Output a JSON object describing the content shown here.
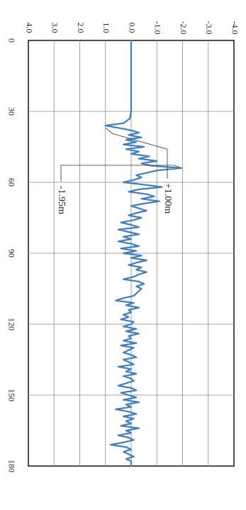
{
  "chart_data": {
    "type": "line",
    "orientation": "rotated-90-clockwise",
    "title": "",
    "xlabel": "",
    "ylabel": "",
    "x_ticks": [
      "0",
      "30",
      "60",
      "90",
      "120",
      "150",
      "180"
    ],
    "y_ticks": [
      "4.0",
      "3.0",
      "2.0",
      "1.0",
      "0.0",
      "-1.0",
      "-2.0",
      "-3.0",
      "-4.0"
    ],
    "xlim": [
      0,
      180
    ],
    "ylim": [
      -4.0,
      4.0
    ],
    "grid": true,
    "line_color": "#3d7fc4",
    "series": [
      {
        "x": [
          0,
          5,
          10,
          15,
          20,
          25,
          30,
          33,
          35,
          36,
          37,
          38,
          39,
          40,
          41,
          42,
          43,
          44,
          45,
          46,
          47,
          48,
          49,
          50,
          51,
          52,
          53,
          54,
          55,
          56,
          57,
          58,
          59,
          60,
          61,
          62,
          63,
          64,
          65,
          66,
          67,
          68,
          69,
          70,
          71,
          72,
          73,
          74,
          75,
          76,
          77,
          78,
          79,
          80,
          81,
          82,
          83,
          84,
          85,
          86,
          87,
          88,
          89,
          90,
          91,
          92,
          93,
          94,
          95,
          96,
          97,
          98,
          99,
          100,
          101,
          102,
          103,
          104,
          105,
          106,
          107,
          108,
          109,
          110,
          111,
          112,
          113,
          114,
          115,
          116,
          117,
          118,
          119,
          120,
          121,
          122,
          123,
          124,
          125,
          126,
          127,
          128,
          129,
          130,
          131,
          132,
          133,
          134,
          135,
          136,
          137,
          138,
          139,
          140,
          141,
          142,
          143,
          144,
          145,
          146,
          147,
          148,
          149,
          150,
          151,
          152,
          153,
          154,
          155,
          156,
          157,
          158,
          159,
          160,
          161,
          162,
          163,
          164,
          165,
          166,
          167,
          168,
          169,
          170,
          171,
          172,
          173,
          174,
          175,
          176,
          177,
          178,
          179,
          180
        ],
        "y": [
          0.0,
          0.0,
          0.0,
          0.0,
          0.0,
          0.0,
          0.0,
          0.05,
          0.3,
          1.0,
          0.5,
          0.0,
          -0.3,
          0.1,
          -0.4,
          0.2,
          -0.2,
          0.3,
          -0.5,
          0.2,
          -0.3,
          0.0,
          -0.7,
          -0.3,
          -1.0,
          -0.4,
          -0.8,
          -1.95,
          -1.0,
          -0.6,
          -0.2,
          -0.4,
          -0.1,
          0.3,
          -0.5,
          -1.2,
          -0.3,
          0.1,
          -0.6,
          -0.9,
          -0.4,
          -1.1,
          -0.5,
          0.0,
          -0.3,
          -0.6,
          -0.2,
          0.1,
          -0.4,
          -0.1,
          0.4,
          0.0,
          -0.3,
          0.5,
          0.1,
          -0.3,
          0.3,
          0.0,
          0.5,
          0.0,
          -0.3,
          0.4,
          -0.2,
          0.3,
          -0.4,
          0.0,
          -0.6,
          -0.2,
          0.1,
          -0.4,
          -0.2,
          -0.6,
          -0.3,
          -0.1,
          0.3,
          -0.3,
          -0.5,
          -0.2,
          -0.4,
          -0.3,
          -0.2,
          -0.1,
          0.3,
          0.6,
          -0.1,
          0.2,
          -0.3,
          0.1,
          0.0,
          0.3,
          0.1,
          0.4,
          -0.1,
          0.0,
          0.3,
          -0.2,
          0.2,
          -0.3,
          0.1,
          0.0,
          0.3,
          -0.2,
          0.4,
          -0.1,
          0.1,
          0.3,
          0.0,
          -0.2,
          0.3,
          0.1,
          -0.1,
          0.5,
          0.0,
          0.2,
          -0.2,
          0.3,
          0.0,
          -0.1,
          0.2,
          0.5,
          0.0,
          -0.2,
          0.4,
          0.1,
          -0.2,
          0.3,
          -0.3,
          0.2,
          0.0,
          0.6,
          0.1,
          -0.2,
          0.3,
          -0.1,
          0.2,
          0.0,
          0.4,
          -0.3,
          0.2,
          0.0,
          0.5,
          0.1,
          -0.1,
          0.3,
          0.8,
          0.2,
          0.0,
          0.3,
          0.1,
          -0.1,
          0.2,
          0.0,
          0.0,
          0.0
        ]
      }
    ],
    "annotations": [
      {
        "text": "+1.00m",
        "x": 37,
        "y": 1.0
      },
      {
        "text": "-1.95m",
        "x": 54,
        "y": -1.95
      }
    ]
  }
}
